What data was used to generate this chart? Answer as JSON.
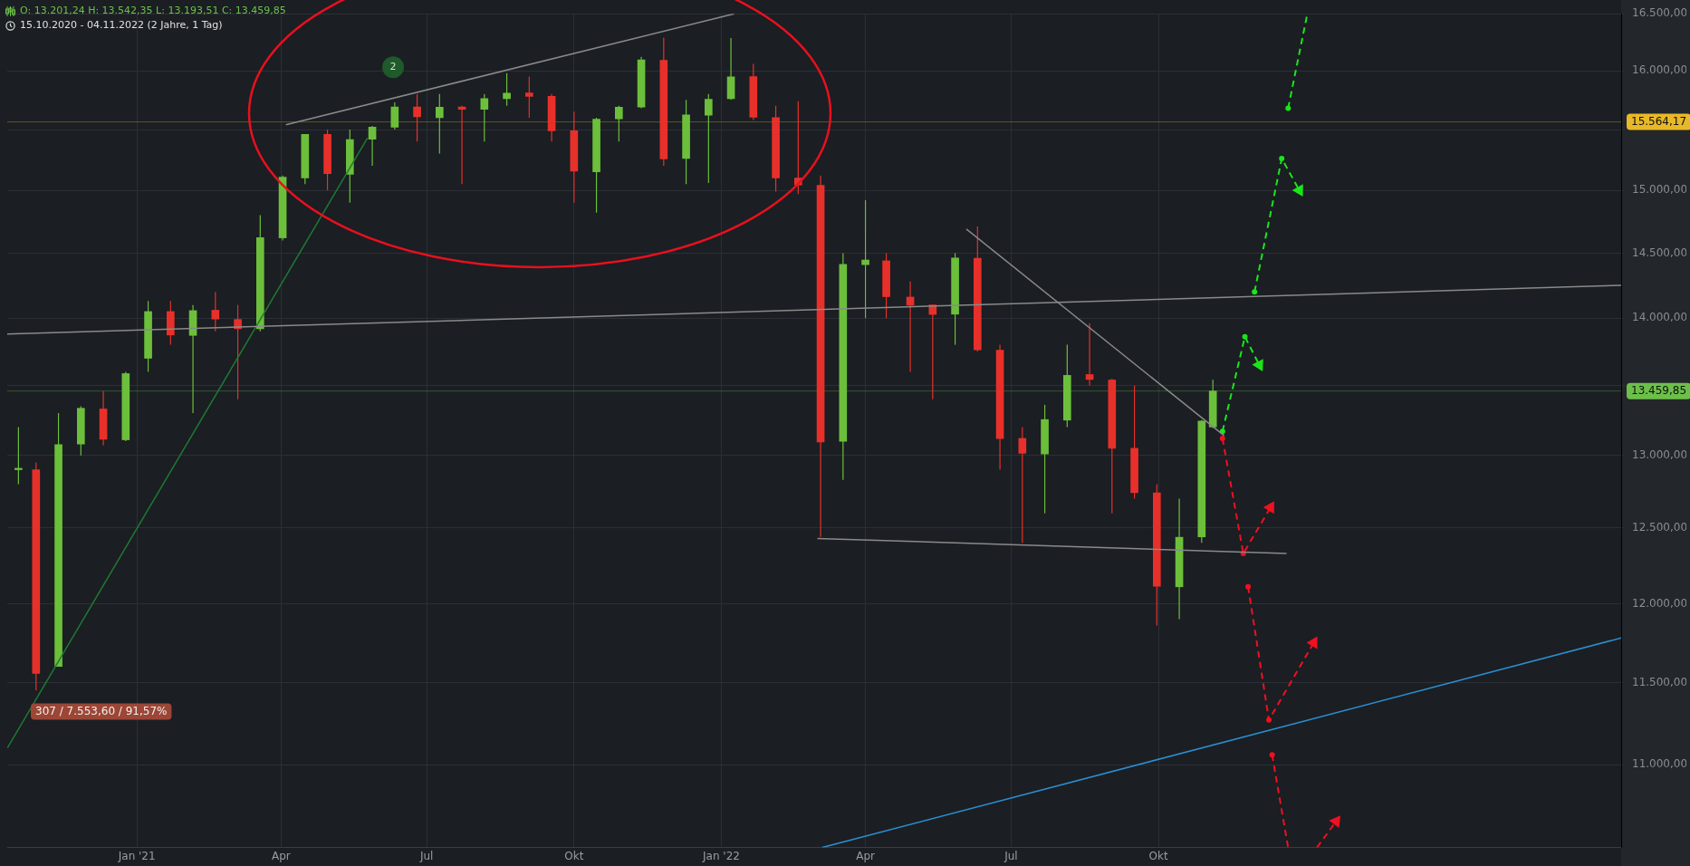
{
  "chart_data": {
    "type": "candlestick",
    "title": "O: 13.201,24  H: 13.542,35  L: 13.193,51  C: 13.459,85",
    "subtitle": "15.10.2020 - 04.11.2022   (2 Jahre, 1 Tag)",
    "x": [
      "2020-10-19",
      "2020-10-30",
      "2020-11-13",
      "2020-11-27",
      "2020-12-11",
      "2020-12-25",
      "2021-01-08",
      "2021-01-22",
      "2021-02-05",
      "2021-02-19",
      "2021-03-05",
      "2021-03-19",
      "2021-04-02",
      "2021-04-16",
      "2021-04-30",
      "2021-05-14",
      "2021-05-28",
      "2021-06-11",
      "2021-06-25",
      "2021-07-09",
      "2021-07-23",
      "2021-08-06",
      "2021-08-20",
      "2021-09-03",
      "2021-09-17",
      "2021-10-01",
      "2021-10-15",
      "2021-10-29",
      "2021-11-12",
      "2021-11-26",
      "2021-12-10",
      "2021-12-24",
      "2022-01-07",
      "2022-01-21",
      "2022-02-04",
      "2022-02-18",
      "2022-03-04",
      "2022-03-18",
      "2022-04-01",
      "2022-04-14",
      "2022-04-29",
      "2022-05-13",
      "2022-05-27",
      "2022-06-10",
      "2022-06-24",
      "2022-07-08",
      "2022-07-22",
      "2022-08-05",
      "2022-08-19",
      "2022-09-02",
      "2022-09-16",
      "2022-09-30",
      "2022-10-14",
      "2022-10-28",
      "2022-11-04"
    ],
    "ohlc": [
      [
        12900,
        13200,
        12800,
        12910
      ],
      [
        12900,
        12950,
        11450,
        11556
      ],
      [
        11600,
        13300,
        11600,
        13076
      ],
      [
        13080,
        13350,
        13000,
        13335
      ],
      [
        13330,
        13460,
        13070,
        13114
      ],
      [
        13110,
        13600,
        13100,
        13587
      ],
      [
        13700,
        14130,
        13600,
        14050
      ],
      [
        14050,
        14130,
        13800,
        13873
      ],
      [
        13870,
        14100,
        13300,
        14057
      ],
      [
        14060,
        14200,
        13900,
        13993
      ],
      [
        13990,
        14100,
        13400,
        13920
      ],
      [
        13920,
        14800,
        13900,
        14621
      ],
      [
        14620,
        15120,
        14600,
        15107
      ],
      [
        15100,
        15460,
        15050,
        15460
      ],
      [
        15460,
        15500,
        15000,
        15136
      ],
      [
        15130,
        15500,
        14900,
        15417
      ],
      [
        15420,
        15530,
        15200,
        15520
      ],
      [
        15520,
        15730,
        15500,
        15690
      ],
      [
        15690,
        15800,
        15400,
        15608
      ],
      [
        15600,
        15800,
        15300,
        15688
      ],
      [
        15690,
        15700,
        15050,
        15670
      ],
      [
        15670,
        15800,
        15400,
        15761
      ],
      [
        15760,
        15980,
        15700,
        15808
      ],
      [
        15810,
        15950,
        15600,
        15781
      ],
      [
        15780,
        15800,
        15400,
        15490
      ],
      [
        15490,
        15650,
        14900,
        15156
      ],
      [
        15150,
        15600,
        14820,
        15587
      ],
      [
        15590,
        15700,
        15400,
        15688
      ],
      [
        15690,
        16120,
        15680,
        16094
      ],
      [
        16090,
        16290,
        15200,
        15257
      ],
      [
        15260,
        15750,
        15050,
        15623
      ],
      [
        15620,
        15800,
        15060,
        15756
      ],
      [
        15760,
        16285,
        15750,
        15947
      ],
      [
        15950,
        16060,
        15580,
        15603
      ],
      [
        15600,
        15700,
        14990,
        15100
      ],
      [
        15100,
        15740,
        14970,
        15043
      ],
      [
        15040,
        15120,
        12440,
        13095
      ],
      [
        13100,
        14500,
        12830,
        14413
      ],
      [
        14410,
        14920,
        14000,
        14446
      ],
      [
        14440,
        14500,
        14000,
        14163
      ],
      [
        14160,
        14280,
        13600,
        14098
      ],
      [
        14100,
        14100,
        13400,
        14028
      ],
      [
        14030,
        14500,
        13800,
        14462
      ],
      [
        14460,
        14710,
        13750,
        13762
      ],
      [
        13760,
        13800,
        12900,
        13118
      ],
      [
        13120,
        13200,
        12400,
        13015
      ],
      [
        13010,
        13360,
        12600,
        13254
      ],
      [
        13250,
        13800,
        13200,
        13574
      ],
      [
        13580,
        13960,
        13500,
        13544
      ],
      [
        13540,
        13550,
        12600,
        13050
      ],
      [
        13050,
        13500,
        12700,
        12741
      ],
      [
        12740,
        12800,
        11860,
        12114
      ],
      [
        12110,
        12700,
        11900,
        12438
      ],
      [
        12440,
        13250,
        12400,
        13243
      ],
      [
        13201.24,
        13542.35,
        13193.51,
        13459.85
      ]
    ],
    "colors": [
      "#6cbf3a",
      "#e8302a",
      "#6cbf3a",
      "#6cbf3a",
      "#e8302a",
      "#6cbf3a",
      "#6cbf3a",
      "#e8302a",
      "#6cbf3a",
      "#e8302a",
      "#e8302a",
      "#6cbf3a",
      "#6cbf3a",
      "#6cbf3a",
      "#e8302a",
      "#6cbf3a",
      "#6cbf3a",
      "#6cbf3a",
      "#e8302a",
      "#6cbf3a",
      "#e8302a",
      "#6cbf3a",
      "#6cbf3a",
      "#e8302a",
      "#e8302a",
      "#e8302a",
      "#6cbf3a",
      "#6cbf3a",
      "#6cbf3a",
      "#e8302a",
      "#6cbf3a",
      "#6cbf3a",
      "#6cbf3a",
      "#e8302a",
      "#e8302a",
      "#e8302a",
      "#e8302a",
      "#6cbf3a",
      "#6cbf3a",
      "#e8302a",
      "#e8302a",
      "#e8302a",
      "#6cbf3a",
      "#e8302a",
      "#e8302a",
      "#e8302a",
      "#6cbf3a",
      "#6cbf3a",
      "#e8302a",
      "#e8302a",
      "#e8302a",
      "#e8302a",
      "#6cbf3a",
      "#6cbf3a",
      "#6cbf3a"
    ],
    "series": [
      {
        "type": "line",
        "x": [
          "2021-04-04",
          "2022-01-09"
        ],
        "values": [
          15540,
          16500
        ],
        "color": "#8a8a8a",
        "line_style": "solid",
        "marker": "none"
      },
      {
        "type": "line",
        "x": [
          "2020-10-12",
          "2023-07-17"
        ],
        "values": [
          13880,
          14250
        ],
        "color": "#8a8a8a",
        "line_style": "solid",
        "marker": "none"
      },
      {
        "type": "line",
        "x": [
          "2022-06-03",
          "2022-11-11"
        ],
        "values": [
          14690,
          13140
        ],
        "color": "#8a8a8a",
        "line_style": "solid",
        "marker": "none"
      },
      {
        "type": "line",
        "x": [
          "2022-03-02",
          "2022-12-20"
        ],
        "values": [
          12430,
          12330
        ],
        "color": "#8a8a8a",
        "line_style": "solid",
        "marker": "none"
      },
      {
        "type": "line",
        "x": [
          "2020-10-12",
          "2021-05-25"
        ],
        "values": [
          11100,
          15430
        ],
        "color": "#1f7a32",
        "line_style": "solid",
        "marker": "none"
      },
      {
        "type": "line",
        "x": [
          "2022-03-05",
          "2023-07-17"
        ],
        "values": [
          10520,
          11780
        ],
        "color": "#2a8fd0",
        "line_style": "solid",
        "marker": "none"
      },
      {
        "type": "line",
        "x": [
          "2022-11-10",
          "2022-11-24",
          "2022-12-03"
        ],
        "values": [
          13170,
          13860,
          13650
        ],
        "color": "#19e619",
        "line_style": "dashed",
        "marker": "circle"
      },
      {
        "type": "line",
        "x": [
          "2022-11-30",
          "2022-12-17",
          "2022-12-28"
        ],
        "values": [
          14200,
          15260,
          15000
        ],
        "color": "#19e619",
        "line_style": "dashed",
        "marker": "circle"
      },
      {
        "type": "line",
        "x": [
          "2022-12-21",
          "2023-01-02"
        ],
        "values": [
          15680,
          16500
        ],
        "color": "#19e619",
        "line_style": "dashed",
        "marker": "circle"
      },
      {
        "type": "line",
        "x": [
          "2022-11-10",
          "2022-11-23",
          "2022-12-10"
        ],
        "values": [
          13120,
          12330,
          12640
        ],
        "color": "#f01020",
        "line_style": "dashed",
        "marker": "circle"
      },
      {
        "type": "line",
        "x": [
          "2022-11-26",
          "2022-12-09",
          "2023-01-06"
        ],
        "values": [
          12110,
          11270,
          11750
        ],
        "color": "#f01020",
        "line_style": "dashed",
        "marker": "circle"
      },
      {
        "type": "line",
        "x": [
          "2022-12-11",
          "2022-12-21"
        ],
        "values": [
          11060,
          10520
        ],
        "color": "#f01020",
        "line_style": "dashed",
        "marker": "circle"
      },
      {
        "type": "line",
        "x": [
          "2023-01-08",
          "2023-01-20"
        ],
        "values": [
          10520,
          10670
        ],
        "color": "#f01020",
        "line_style": "dashed",
        "marker": "triangle"
      }
    ],
    "xlim": [
      "2020-10-12",
      "2023-07-17"
    ],
    "xticks": [
      {
        "value": "2021-01-01",
        "label": "Jan '21"
      },
      {
        "value": "2021-04-01",
        "label": "Apr"
      },
      {
        "value": "2021-07-01",
        "label": "Jul"
      },
      {
        "value": "2021-10-01",
        "label": "Okt"
      },
      {
        "value": "2022-01-01",
        "label": "Jan '22"
      },
      {
        "value": "2022-04-01",
        "label": "Apr"
      },
      {
        "value": "2022-07-01",
        "label": "Jul"
      },
      {
        "value": "2022-10-01",
        "label": "Okt"
      }
    ],
    "ylim": [
      10520,
      16500
    ],
    "log": true,
    "yticks": [
      {
        "value": 11000,
        "label": "11.000,00"
      },
      {
        "value": 11500,
        "label": "11.500,00"
      },
      {
        "value": 12000,
        "label": "12.000,00"
      },
      {
        "value": 12500,
        "label": "12.500,00"
      },
      {
        "value": 13000,
        "label": "13.000,00"
      },
      {
        "value": 13500,
        "label": null
      },
      {
        "value": 14000,
        "label": "14.000,00"
      },
      {
        "value": 14500,
        "label": "14.500,00"
      },
      {
        "value": 15000,
        "label": "15.000,00"
      },
      {
        "value": 15500,
        "label": null
      },
      {
        "value": 16000,
        "label": "16.000,00"
      },
      {
        "value": 16500,
        "label": "16.500,00"
      }
    ],
    "grid": true,
    "ref_lines": [
      {
        "axis": "y",
        "value": 15564.17,
        "label": "15.564,17",
        "color": "#e8b828"
      },
      {
        "axis": "y",
        "value": 13459.85,
        "label": "13.459,85",
        "color": "#6cc04a"
      }
    ],
    "annotations": [
      "307 / 7.553,60 / 91,57%",
      {
        "text": "2",
        "x": "2021-06-10",
        "y": 16030
      }
    ]
  }
}
